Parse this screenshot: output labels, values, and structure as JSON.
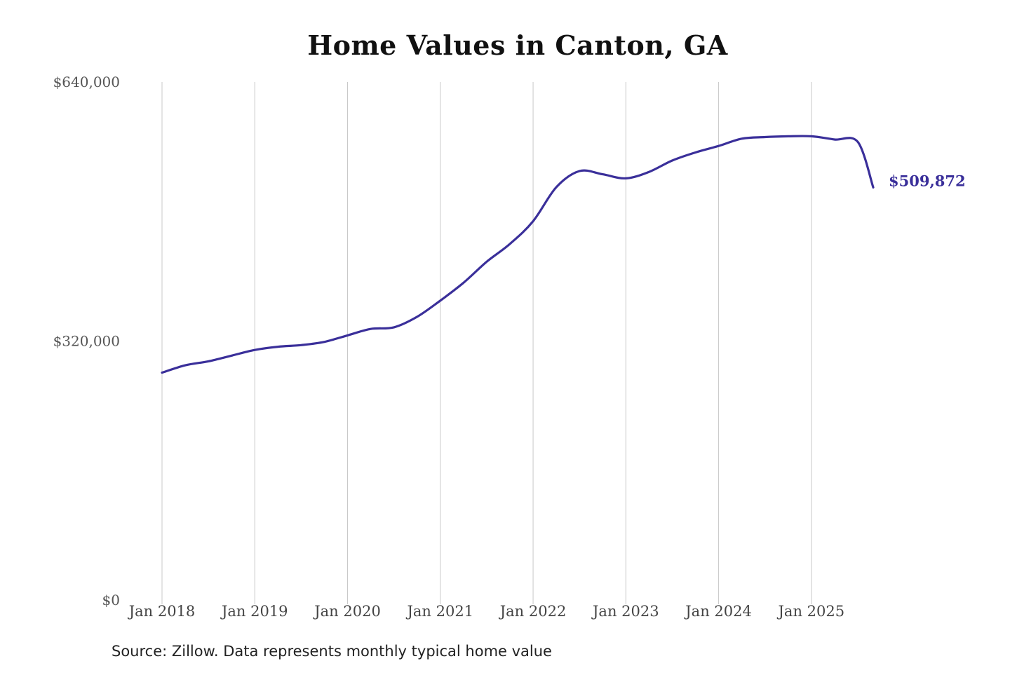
{
  "chart_data": {
    "type": "line",
    "title": "Home Values in Canton, GA",
    "xlabel": "",
    "ylabel": "",
    "yticks": [
      {
        "value": 0,
        "label": "$0"
      },
      {
        "value": 320000,
        "label": "$320,000"
      },
      {
        "value": 640000,
        "label": "$640,000"
      }
    ],
    "ylim": [
      0,
      640000
    ],
    "xlim": [
      "2018-01",
      "2025-09"
    ],
    "xticks": [
      {
        "date": "2018-01",
        "label": "Jan 2018"
      },
      {
        "date": "2019-01",
        "label": "Jan 2019"
      },
      {
        "date": "2020-01",
        "label": "Jan 2020"
      },
      {
        "date": "2021-01",
        "label": "Jan 2021"
      },
      {
        "date": "2022-01",
        "label": "Jan 2022"
      },
      {
        "date": "2023-01",
        "label": "Jan 2023"
      },
      {
        "date": "2024-01",
        "label": "Jan 2024"
      },
      {
        "date": "2025-01",
        "label": "Jan 2025"
      }
    ],
    "grid": {
      "vertical": true,
      "horizontal": false
    },
    "series": [
      {
        "color": "#3a2f9a",
        "x": [
          "2018-01",
          "2018-04",
          "2018-07",
          "2018-10",
          "2019-01",
          "2019-04",
          "2019-07",
          "2019-10",
          "2020-01",
          "2020-04",
          "2020-07",
          "2020-10",
          "2021-01",
          "2021-04",
          "2021-07",
          "2021-10",
          "2022-01",
          "2022-04",
          "2022-07",
          "2022-10",
          "2023-01",
          "2023-04",
          "2023-07",
          "2023-10",
          "2024-01",
          "2024-04",
          "2024-07",
          "2024-10",
          "2025-01",
          "2025-04",
          "2025-07",
          "2025-09"
        ],
        "values": [
          281000,
          290000,
          295000,
          302000,
          309000,
          313000,
          315000,
          319000,
          327000,
          335000,
          337000,
          350000,
          370000,
          392000,
          418000,
          440000,
          468000,
          510000,
          530000,
          526000,
          521000,
          529000,
          543000,
          553000,
          561000,
          570000,
          572000,
          573000,
          573000,
          569000,
          566000,
          509872
        ],
        "end_label": "$509,872"
      }
    ]
  },
  "footer": {
    "source": "Source: Zillow. Data represents monthly typical home value"
  }
}
